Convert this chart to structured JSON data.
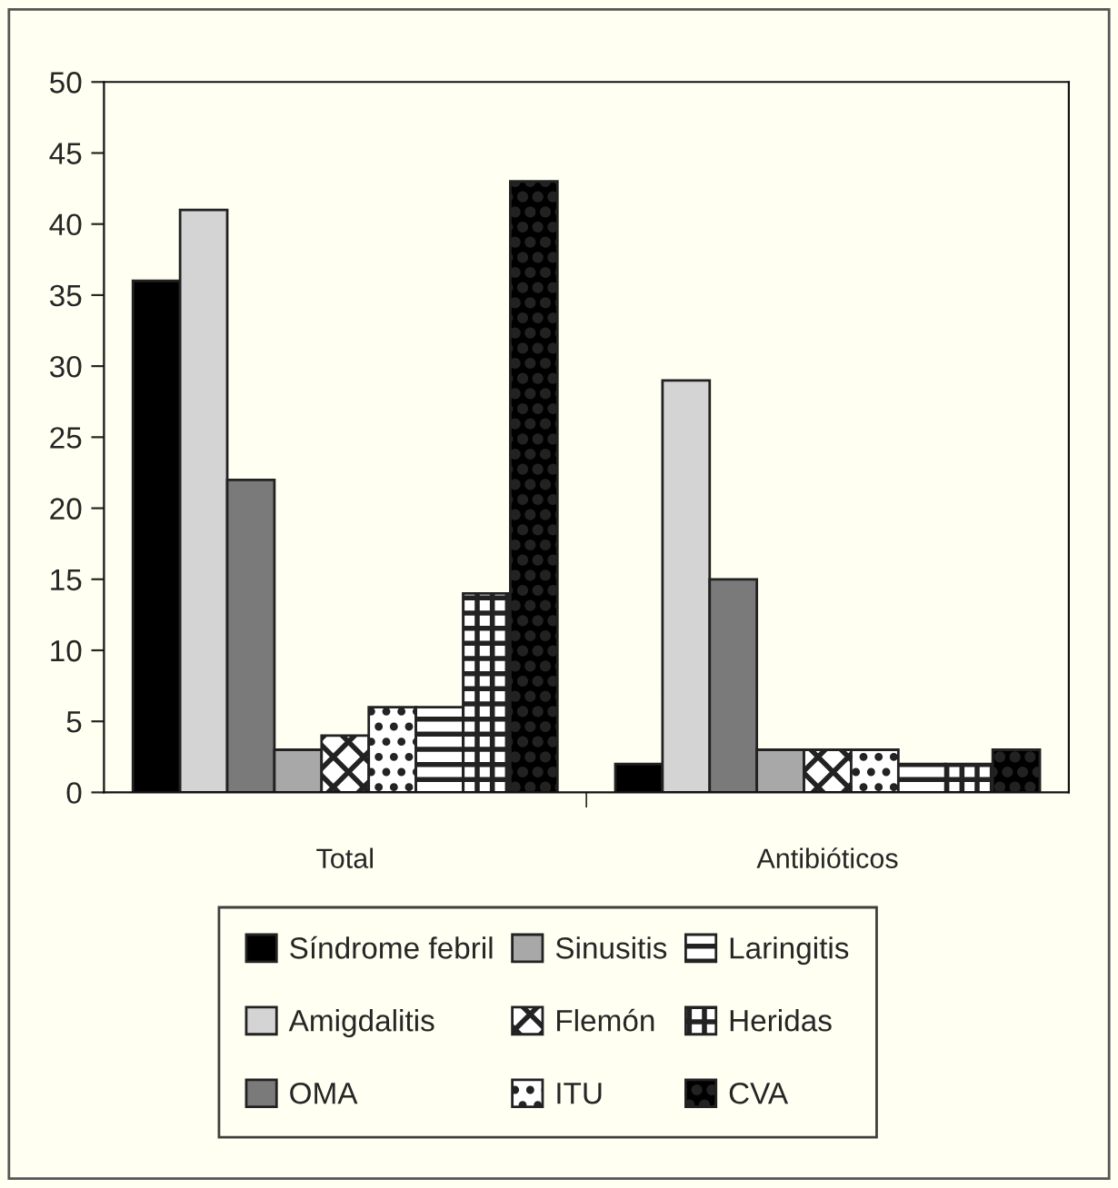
{
  "chart_data": {
    "type": "bar",
    "categories": [
      "Total",
      "Antibióticos"
    ],
    "series": [
      {
        "name": "Síndrome febril",
        "color": "#000000",
        "values": [
          36,
          2
        ]
      },
      {
        "name": "Amigdalitis",
        "color": "#d4d4d4",
        "values": [
          41,
          29
        ]
      },
      {
        "name": "OMA",
        "color": "#7a7a7a",
        "values": [
          22,
          15
        ]
      },
      {
        "name": "Sinusitis",
        "color": "#a8a8a8",
        "values": [
          3,
          3
        ]
      },
      {
        "name": "Flemón",
        "color": "#222222",
        "values": [
          4,
          3
        ]
      },
      {
        "name": "ITU",
        "color": "#222222",
        "values": [
          6,
          3
        ]
      },
      {
        "name": "Laringitis",
        "color": "#222222",
        "values": [
          6,
          2
        ]
      },
      {
        "name": "Heridas",
        "color": "#222222",
        "values": [
          14,
          2
        ]
      },
      {
        "name": "CVA",
        "color": "#222222",
        "values": [
          43,
          3
        ]
      }
    ],
    "ylim": [
      0,
      50
    ],
    "yticks": [
      0,
      5,
      10,
      15,
      20,
      25,
      30,
      35,
      40,
      45,
      50
    ],
    "grid": false,
    "legend": "bottom"
  }
}
